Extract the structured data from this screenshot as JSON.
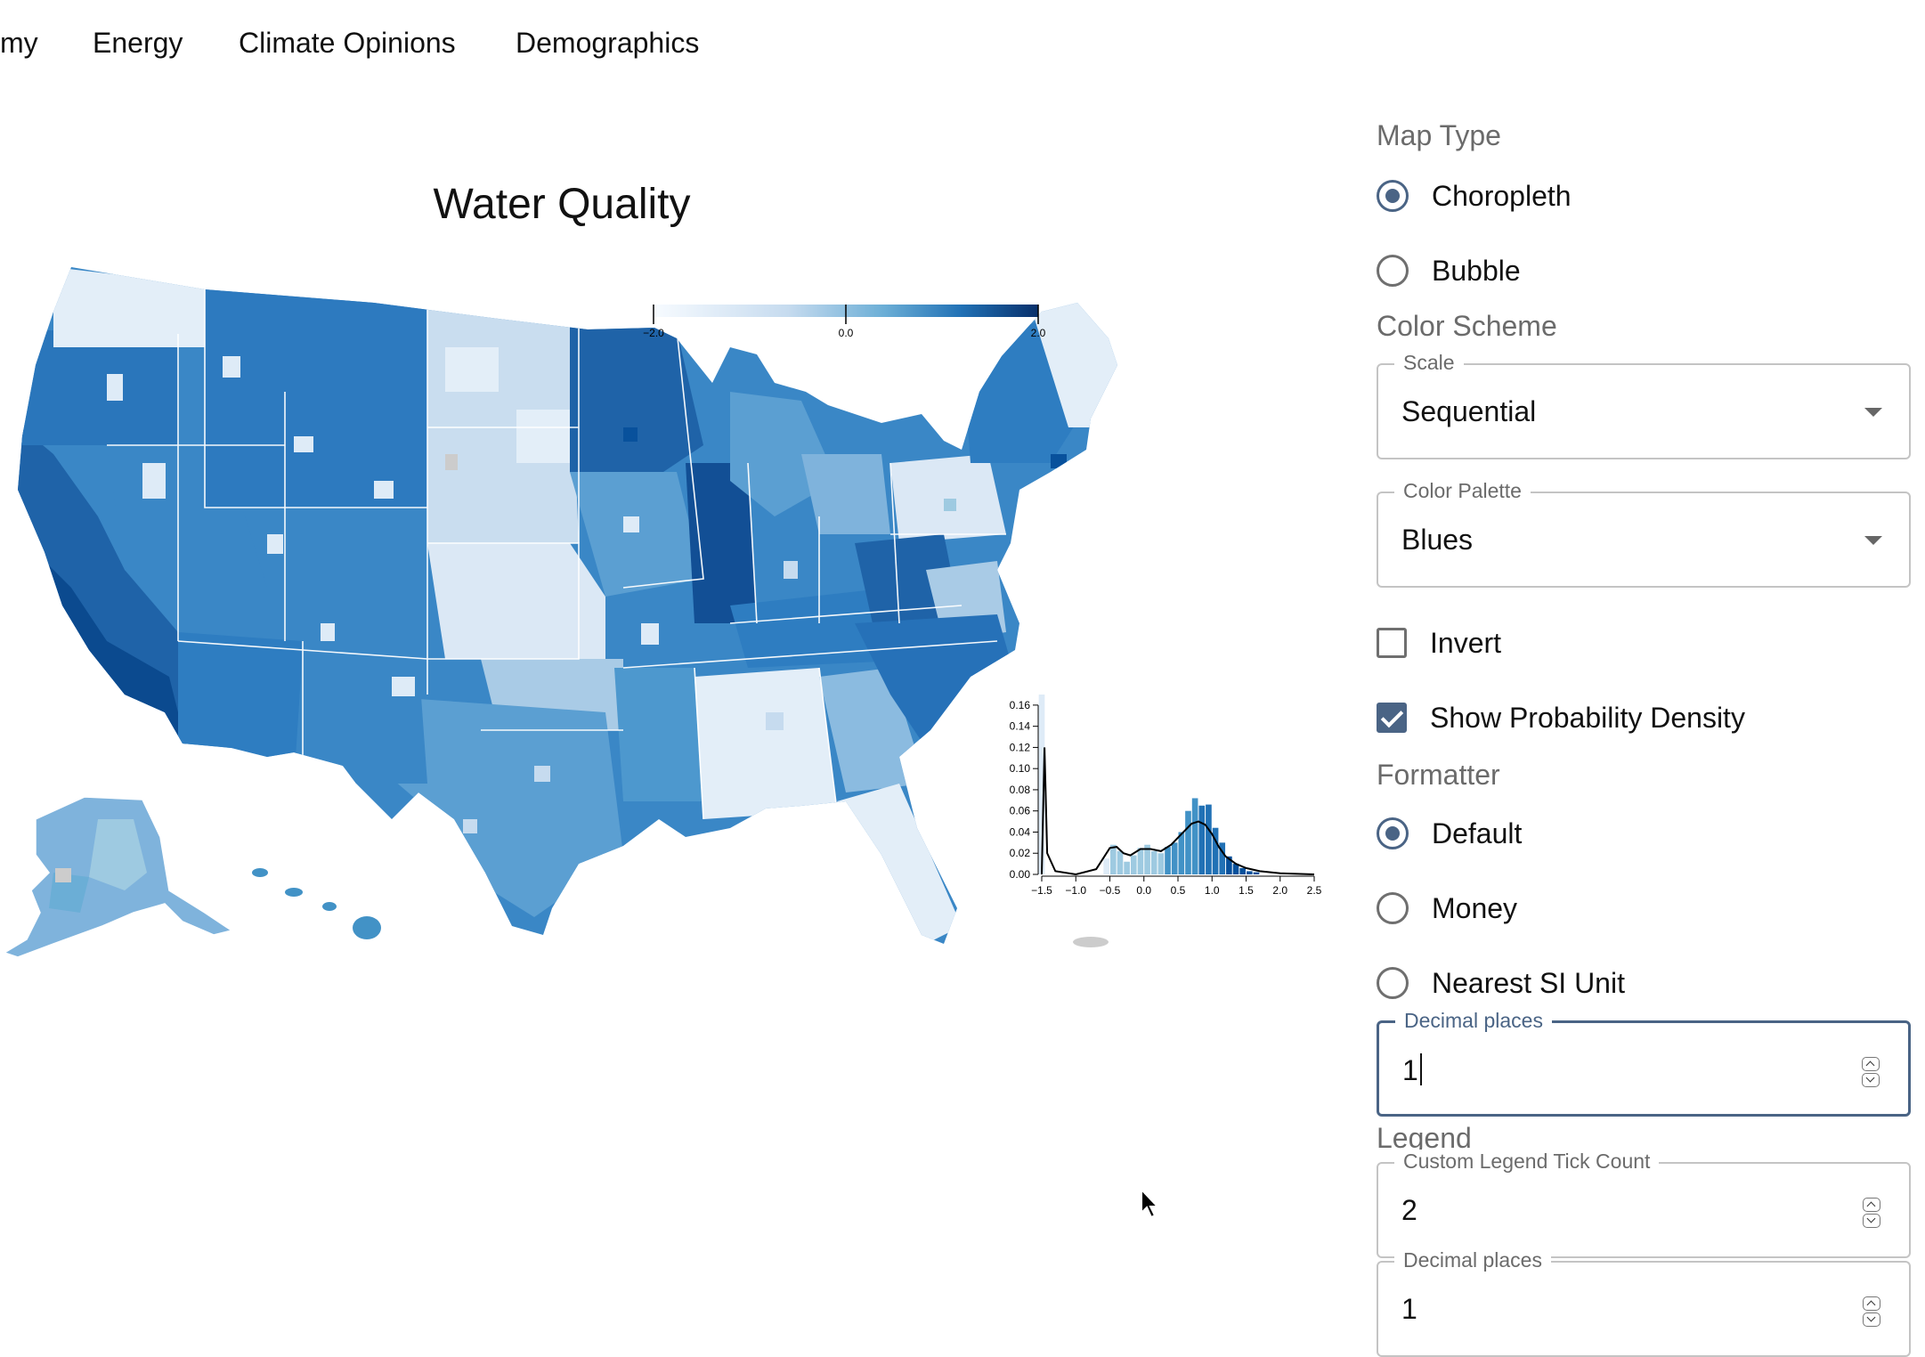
{
  "nav": {
    "items": [
      "my",
      "Energy",
      "Climate Opinions",
      "Demographics"
    ]
  },
  "map": {
    "title": "Water Quality",
    "legend_ticks": [
      "−2.0",
      "0.0",
      "2.0"
    ],
    "colors": {
      "lightest": "#deebf7",
      "light": "#9ecae1",
      "mid": "#4292c6",
      "dark": "#2171b5",
      "darkest": "#08519c",
      "missing": "#cccccc"
    }
  },
  "chart_data": {
    "type": "bar",
    "title": "",
    "xlabel": "",
    "ylabel": "",
    "xlim": [
      -1.5,
      2.5
    ],
    "ylim": [
      0,
      0.17
    ],
    "x_ticks": [
      "−1.5",
      "−1.0",
      "−0.5",
      "0.0",
      "0.5",
      "1.0",
      "1.5",
      "2.0",
      "2.5"
    ],
    "y_ticks": [
      "0.00",
      "0.02",
      "0.04",
      "0.06",
      "0.08",
      "0.10",
      "0.12",
      "0.14",
      "0.16"
    ],
    "bins": [
      {
        "x": -1.5,
        "value": 0.17
      },
      {
        "x": -0.55,
        "value": 0.015
      },
      {
        "x": -0.45,
        "value": 0.028
      },
      {
        "x": -0.35,
        "value": 0.022
      },
      {
        "x": -0.25,
        "value": 0.012
      },
      {
        "x": -0.15,
        "value": 0.018
      },
      {
        "x": -0.05,
        "value": 0.025
      },
      {
        "x": 0.05,
        "value": 0.028
      },
      {
        "x": 0.15,
        "value": 0.022
      },
      {
        "x": 0.25,
        "value": 0.02
      },
      {
        "x": 0.35,
        "value": 0.026
      },
      {
        "x": 0.45,
        "value": 0.03
      },
      {
        "x": 0.55,
        "value": 0.04
      },
      {
        "x": 0.65,
        "value": 0.06
      },
      {
        "x": 0.75,
        "value": 0.072
      },
      {
        "x": 0.85,
        "value": 0.065
      },
      {
        "x": 0.95,
        "value": 0.066
      },
      {
        "x": 1.05,
        "value": 0.044
      },
      {
        "x": 1.15,
        "value": 0.03
      },
      {
        "x": 1.25,
        "value": 0.017
      },
      {
        "x": 1.35,
        "value": 0.01
      },
      {
        "x": 1.45,
        "value": 0.006
      },
      {
        "x": 1.55,
        "value": 0.003
      },
      {
        "x": 1.65,
        "value": 0.002
      }
    ],
    "density": [
      [
        -1.5,
        0.0
      ],
      [
        -1.46,
        0.12
      ],
      [
        -1.42,
        0.02
      ],
      [
        -1.3,
        0.003
      ],
      [
        -1.0,
        0.0
      ],
      [
        -0.7,
        0.005
      ],
      [
        -0.5,
        0.025
      ],
      [
        -0.4,
        0.026
      ],
      [
        -0.3,
        0.02
      ],
      [
        -0.2,
        0.018
      ],
      [
        -0.05,
        0.024
      ],
      [
        0.1,
        0.024
      ],
      [
        0.25,
        0.022
      ],
      [
        0.4,
        0.028
      ],
      [
        0.55,
        0.038
      ],
      [
        0.7,
        0.048
      ],
      [
        0.8,
        0.05
      ],
      [
        0.9,
        0.047
      ],
      [
        1.0,
        0.038
      ],
      [
        1.1,
        0.026
      ],
      [
        1.2,
        0.017
      ],
      [
        1.35,
        0.01
      ],
      [
        1.5,
        0.006
      ],
      [
        1.7,
        0.003
      ],
      [
        2.0,
        0.001
      ],
      [
        2.5,
        0.0
      ]
    ]
  },
  "panel": {
    "map_type": {
      "label": "Map Type",
      "options": [
        {
          "label": "Choropleth",
          "selected": true
        },
        {
          "label": "Bubble",
          "selected": false
        }
      ]
    },
    "color_scheme": {
      "label": "Color Scheme",
      "scale": {
        "label": "Scale",
        "value": "Sequential"
      },
      "palette": {
        "label": "Color Palette",
        "value": "Blues"
      },
      "invert": {
        "label": "Invert",
        "checked": false
      },
      "density": {
        "label": "Show Probability Density",
        "checked": true
      }
    },
    "formatter": {
      "label": "Formatter",
      "options": [
        {
          "label": "Default",
          "selected": true
        },
        {
          "label": "Money",
          "selected": false
        },
        {
          "label": "Nearest SI Unit",
          "selected": false
        }
      ],
      "decimal_places": {
        "label": "Decimal places",
        "value": "1"
      }
    },
    "legend": {
      "label": "Legend",
      "tick_count": {
        "label": "Custom Legend Tick Count",
        "value": "2"
      },
      "decimal_places": {
        "label": "Decimal places",
        "value": "1"
      }
    }
  }
}
